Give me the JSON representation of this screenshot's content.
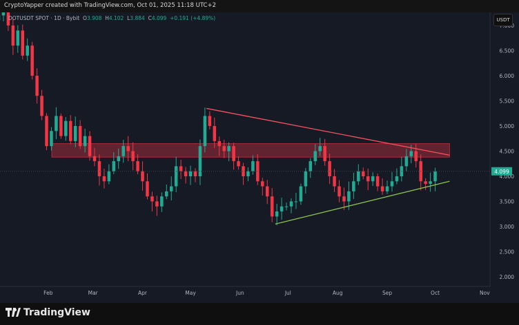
{
  "header": {
    "author_line": "CryptoYapper created with TradingView.com, Oct 01, 2025 11:18 UTC+2"
  },
  "legend": {
    "symbol": "DOTUSDT SPOT · 1D · Bybit",
    "o_label": "O",
    "o": "3.908",
    "h_label": "H",
    "h": "4.102",
    "l_label": "L",
    "l": "3.884",
    "c_label": "C",
    "c": "4.099",
    "change": "+0.191 (+4.89%)"
  },
  "currency_button": "USDT",
  "footer": {
    "brand": "TradingView"
  },
  "colors": {
    "up": "#22ab94",
    "down": "#f23645",
    "resistance": "#f7525f",
    "support": "#8bc34a",
    "zone": "#f23645",
    "bg": "#161a25"
  },
  "chart_data": {
    "type": "candlestick",
    "title": "DOTUSDT SPOT · 1D · Bybit",
    "ylim": [
      1.85,
      7.15
    ],
    "y_ticks": [
      "2.000",
      "2.500",
      "3.000",
      "3.500",
      "4.000",
      "4.500",
      "5.000",
      "5.500",
      "6.000",
      "6.500",
      "7.000"
    ],
    "x_ticks": [
      {
        "label": "Feb",
        "day": 31
      },
      {
        "label": "Mar",
        "day": 59
      },
      {
        "label": "Apr",
        "day": 90
      },
      {
        "label": "May",
        "day": 120
      },
      {
        "label": "Jun",
        "day": 151
      },
      {
        "label": "Jul",
        "day": 181
      },
      {
        "label": "Aug",
        "day": 212
      },
      {
        "label": "Sep",
        "day": 243
      },
      {
        "label": "Oct",
        "day": 273
      },
      {
        "label": "Nov",
        "day": 304
      }
    ],
    "x_unit": "days since 2025-01-01",
    "step_days": 3,
    "closes": [
      7.2,
      7.4,
      7.0,
      6.6,
      6.9,
      6.4,
      6.6,
      6.0,
      5.6,
      5.2,
      4.6,
      4.9,
      5.2,
      4.8,
      5.1,
      4.7,
      5.0,
      4.6,
      4.8,
      4.4,
      4.3,
      4.0,
      3.9,
      4.1,
      4.3,
      4.4,
      4.6,
      4.5,
      4.3,
      4.1,
      3.9,
      3.6,
      3.5,
      3.4,
      3.6,
      3.7,
      3.8,
      4.2,
      4.1,
      4.0,
      4.1,
      4.0,
      4.6,
      5.2,
      5.0,
      4.7,
      4.6,
      4.5,
      4.6,
      4.3,
      4.2,
      4.0,
      4.1,
      4.3,
      3.9,
      3.8,
      3.6,
      3.2,
      3.3,
      3.4,
      3.4,
      3.5,
      3.5,
      3.8,
      4.1,
      4.3,
      4.5,
      4.6,
      4.3,
      4.0,
      3.8,
      3.6,
      3.5,
      3.7,
      3.9,
      4.1,
      4.0,
      3.9,
      4.0,
      3.8,
      3.7,
      3.8,
      3.9,
      4.0,
      4.2,
      4.4,
      4.5,
      4.3,
      3.9,
      3.85,
      3.9,
      4.099
    ],
    "last_price": "4.099",
    "resistance_line": {
      "from": {
        "day": 130,
        "price": 5.35
      },
      "to": {
        "day": 282,
        "price": 4.42
      }
    },
    "support_line": {
      "from": {
        "day": 173,
        "price": 3.05
      },
      "to": {
        "day": 282,
        "price": 3.9
      }
    },
    "zone": {
      "from_day": 3,
      "to_day": 282,
      "low": 4.38,
      "high": 4.65
    }
  }
}
